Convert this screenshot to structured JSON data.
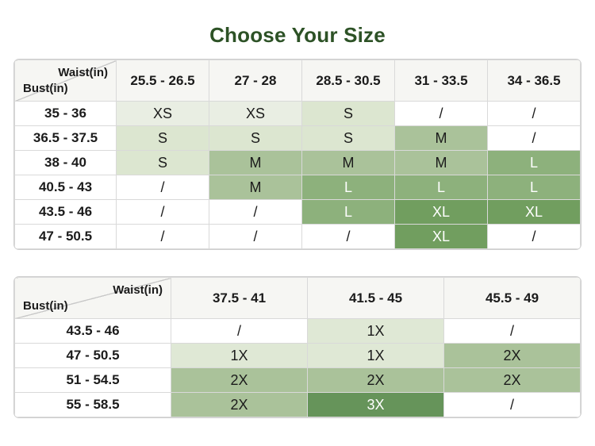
{
  "title": "Choose Your Size",
  "colors": {
    "title": "#2d5226",
    "text": "#1b1b1b",
    "border": "#d9d9d9",
    "outer_border": "#cfcfcf",
    "header_bg": "#f6f6f3",
    "shades": {
      "none": {
        "bg": "#ffffff",
        "fg": "#1b1b1b"
      },
      "xs": {
        "bg": "#e9eee3",
        "fg": "#1b1b1b"
      },
      "s": {
        "bg": "#dce6d0",
        "fg": "#1b1b1b"
      },
      "m": {
        "bg": "#aac29a",
        "fg": "#1b1b1b"
      },
      "l": {
        "bg": "#8db17c",
        "fg": "#ffffff"
      },
      "xl": {
        "bg": "#719e5f",
        "fg": "#ffffff"
      },
      "x1": {
        "bg": "#dfe8d5",
        "fg": "#1b1b1b"
      },
      "x2": {
        "bg": "#aac29a",
        "fg": "#1b1b1b"
      },
      "x3": {
        "bg": "#66945a",
        "fg": "#ffffff"
      }
    }
  },
  "tables": [
    {
      "name": "standard-sizes",
      "corner": {
        "top": "Waist(in)",
        "bottom": "Bust(in)"
      },
      "columns": [
        "25.5 - 26.5",
        "27 - 28",
        "28.5 - 30.5",
        "31 - 33.5",
        "34 - 36.5"
      ],
      "rows": [
        {
          "bust": "35 - 36",
          "cells": [
            {
              "v": "XS",
              "s": "xs"
            },
            {
              "v": "XS",
              "s": "xs"
            },
            {
              "v": "S",
              "s": "s"
            },
            {
              "v": "/",
              "s": "none"
            },
            {
              "v": "/",
              "s": "none"
            }
          ]
        },
        {
          "bust": "36.5 - 37.5",
          "cells": [
            {
              "v": "S",
              "s": "s"
            },
            {
              "v": "S",
              "s": "s"
            },
            {
              "v": "S",
              "s": "s"
            },
            {
              "v": "M",
              "s": "m"
            },
            {
              "v": "/",
              "s": "none"
            }
          ]
        },
        {
          "bust": "38 - 40",
          "cells": [
            {
              "v": "S",
              "s": "s"
            },
            {
              "v": "M",
              "s": "m"
            },
            {
              "v": "M",
              "s": "m"
            },
            {
              "v": "M",
              "s": "m"
            },
            {
              "v": "L",
              "s": "l"
            }
          ]
        },
        {
          "bust": "40.5 - 43",
          "cells": [
            {
              "v": "/",
              "s": "none"
            },
            {
              "v": "M",
              "s": "m"
            },
            {
              "v": "L",
              "s": "l"
            },
            {
              "v": "L",
              "s": "l"
            },
            {
              "v": "L",
              "s": "l"
            }
          ]
        },
        {
          "bust": "43.5 - 46",
          "cells": [
            {
              "v": "/",
              "s": "none"
            },
            {
              "v": "/",
              "s": "none"
            },
            {
              "v": "L",
              "s": "l"
            },
            {
              "v": "XL",
              "s": "xl"
            },
            {
              "v": "XL",
              "s": "xl"
            }
          ]
        },
        {
          "bust": "47 - 50.5",
          "cells": [
            {
              "v": "/",
              "s": "none"
            },
            {
              "v": "/",
              "s": "none"
            },
            {
              "v": "/",
              "s": "none"
            },
            {
              "v": "XL",
              "s": "xl"
            },
            {
              "v": "/",
              "s": "none"
            }
          ]
        }
      ]
    },
    {
      "name": "plus-sizes",
      "corner": {
        "top": "Waist(in)",
        "bottom": "Bust(in)"
      },
      "columns": [
        "37.5 - 41",
        "41.5 - 45",
        "45.5 - 49"
      ],
      "rows": [
        {
          "bust": "43.5 - 46",
          "cells": [
            {
              "v": "/",
              "s": "none"
            },
            {
              "v": "1X",
              "s": "x1"
            },
            {
              "v": "/",
              "s": "none"
            }
          ]
        },
        {
          "bust": "47 - 50.5",
          "cells": [
            {
              "v": "1X",
              "s": "x1"
            },
            {
              "v": "1X",
              "s": "x1"
            },
            {
              "v": "2X",
              "s": "x2"
            }
          ]
        },
        {
          "bust": "51 - 54.5",
          "cells": [
            {
              "v": "2X",
              "s": "x2"
            },
            {
              "v": "2X",
              "s": "x2"
            },
            {
              "v": "2X",
              "s": "x2"
            }
          ]
        },
        {
          "bust": "55 - 58.5",
          "cells": [
            {
              "v": "2X",
              "s": "x2"
            },
            {
              "v": "3X",
              "s": "x3"
            },
            {
              "v": "/",
              "s": "none"
            }
          ]
        }
      ]
    }
  ]
}
